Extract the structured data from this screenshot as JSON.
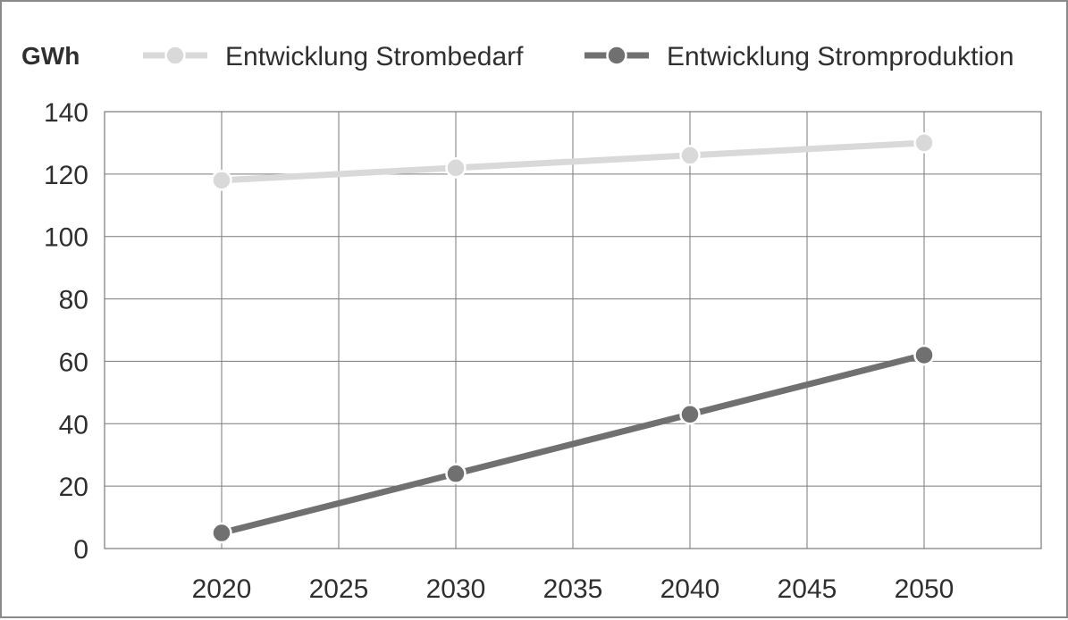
{
  "chart_data": {
    "type": "line",
    "unit_label": "GWh",
    "x_ticks": [
      2020,
      2025,
      2030,
      2035,
      2040,
      2045,
      2050
    ],
    "y_ticks": [
      0,
      20,
      40,
      60,
      80,
      100,
      120,
      140
    ],
    "xlim": [
      2015,
      2055
    ],
    "ylim": [
      0,
      140
    ],
    "grid": true,
    "legend_position": "top",
    "series": [
      {
        "name": "Entwicklung Strombedarf",
        "color": "#d9d9d9",
        "points": [
          {
            "x": 2020,
            "y": 118
          },
          {
            "x": 2030,
            "y": 122
          },
          {
            "x": 2040,
            "y": 126
          },
          {
            "x": 2050,
            "y": 130
          }
        ]
      },
      {
        "name": "Entwicklung Stromproduktion",
        "color": "#707070",
        "points": [
          {
            "x": 2020,
            "y": 5
          },
          {
            "x": 2030,
            "y": 24
          },
          {
            "x": 2040,
            "y": 43
          },
          {
            "x": 2050,
            "y": 62
          }
        ]
      }
    ]
  }
}
